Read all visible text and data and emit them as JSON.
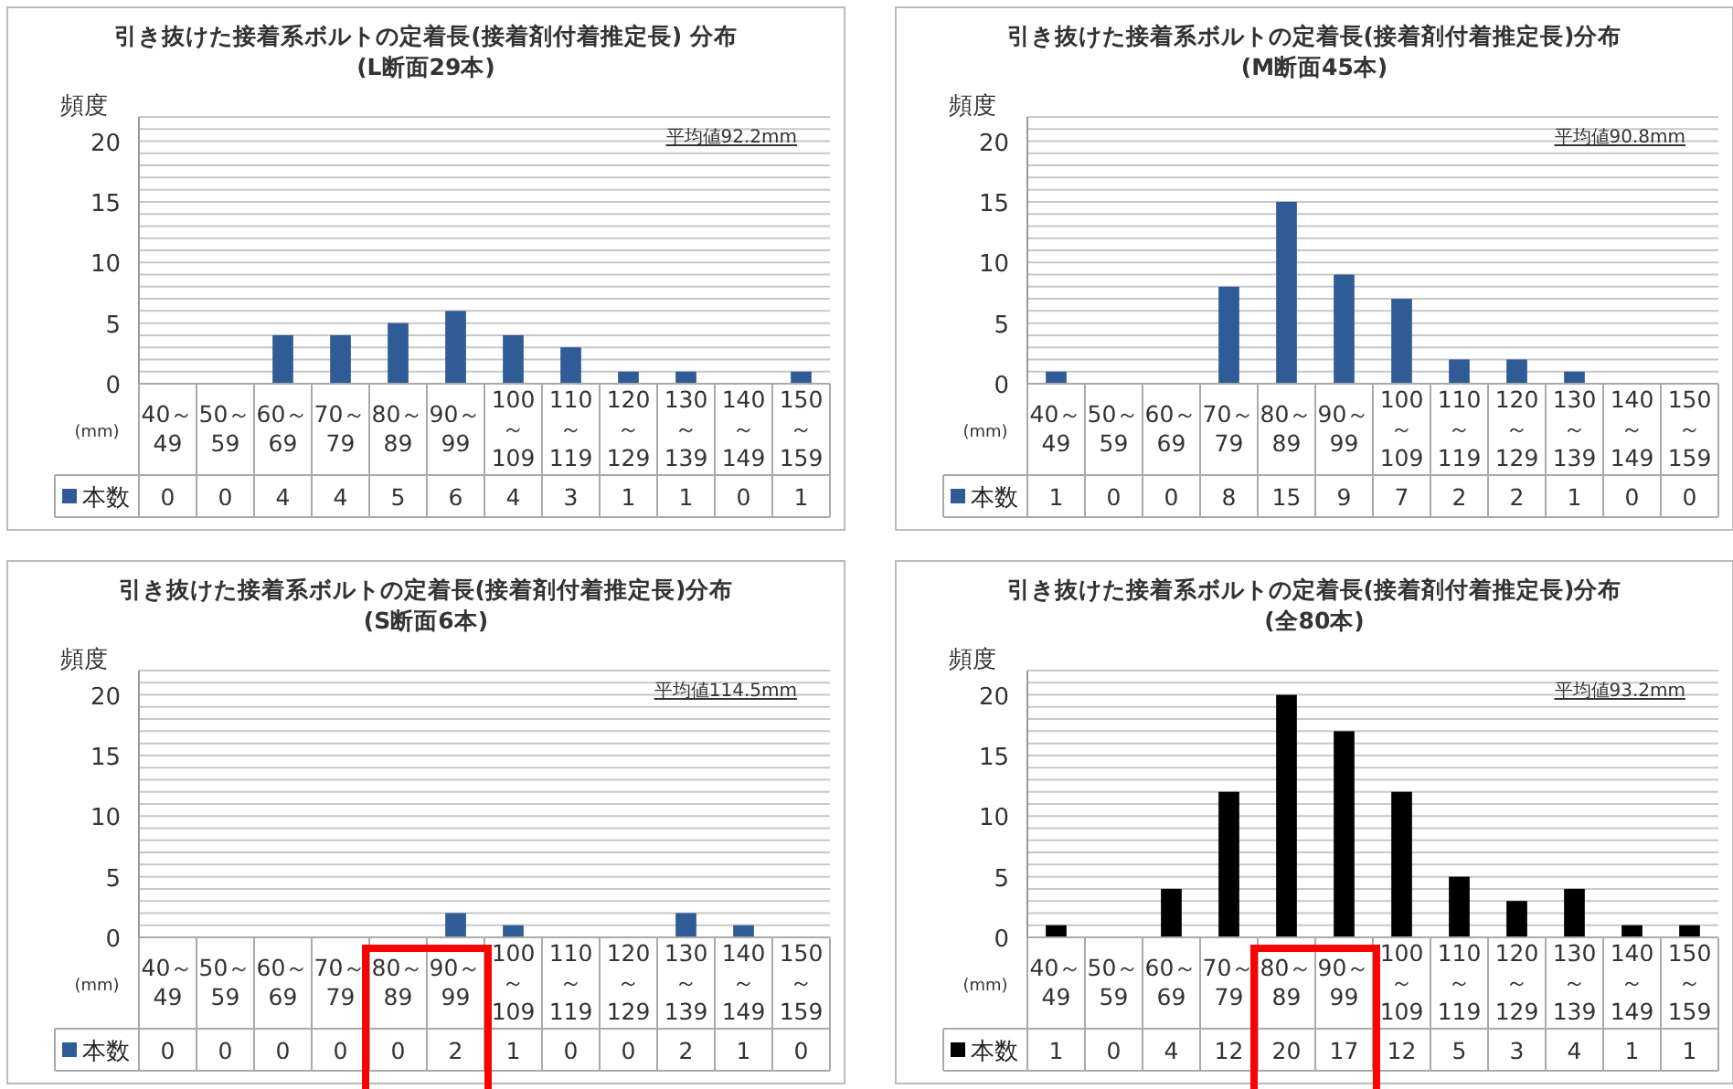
{
  "chart_data": [
    {
      "type": "bar",
      "title": "引き抜けた接着系ボルトの定着長(接着剤付着推定長) 分布",
      "subtitle": "(L断面29本)",
      "ylabel": "頻度",
      "xlabel": "(mm)",
      "categories": [
        "40～49",
        "50～59",
        "60～69",
        "70～79",
        "80～89",
        "90～99",
        "100～109",
        "110～119",
        "120～129",
        "130～139",
        "140～149",
        "150～159"
      ],
      "series": [
        {
          "name": "本数",
          "color": "#2f5b96",
          "values": [
            0,
            0,
            4,
            4,
            5,
            6,
            4,
            3,
            1,
            1,
            0,
            1
          ]
        }
      ],
      "ylim": [
        0,
        22
      ],
      "yticks": [
        0,
        {
          "value": 1,
          "label": null
        },
        {
          "value": 2,
          "label": null
        },
        {
          "value": 3,
          "label": null
        },
        {
          "value": 4,
          "label": null
        },
        5,
        {
          "value": 6,
          "label": null
        },
        {
          "value": 7,
          "label": null
        },
        {
          "value": 8,
          "label": null
        },
        {
          "value": 9,
          "label": null
        },
        10,
        {
          "value": 11,
          "label": null
        },
        {
          "value": 12,
          "label": null
        },
        {
          "value": 13,
          "label": null
        },
        {
          "value": 14,
          "label": null
        },
        15,
        {
          "value": 16,
          "label": null
        },
        {
          "value": 17,
          "label": null
        },
        {
          "value": 18,
          "label": null
        },
        {
          "value": 19,
          "label": null
        },
        20,
        {
          "value": 21,
          "label": null
        },
        {
          "value": 22,
          "label": null
        }
      ],
      "grid": "y",
      "legend": "bottom",
      "data_labels": true,
      "annotations": [
        "平均値92.2mm"
      ]
    },
    {
      "type": "bar",
      "title": "引き抜けた接着系ボルトの定着長(接着剤付着推定長)分布",
      "subtitle": "(M断面45本)",
      "ylabel": "頻度",
      "xlabel": "(mm)",
      "categories": [
        "40～49",
        "50～59",
        "60～69",
        "70～79",
        "80～89",
        "90～99",
        "100～109",
        "110～119",
        "120～129",
        "130～139",
        "140～149",
        "150～159"
      ],
      "series": [
        {
          "name": "本数",
          "color": "#2f5b96",
          "values": [
            1,
            0,
            0,
            8,
            15,
            9,
            7,
            2,
            2,
            1,
            0,
            0
          ]
        }
      ],
      "ylim": [
        0,
        22
      ],
      "yticks": [
        0,
        {
          "value": 1,
          "label": null
        },
        {
          "value": 2,
          "label": null
        },
        {
          "value": 3,
          "label": null
        },
        {
          "value": 4,
          "label": null
        },
        5,
        {
          "value": 6,
          "label": null
        },
        {
          "value": 7,
          "label": null
        },
        {
          "value": 8,
          "label": null
        },
        {
          "value": 9,
          "label": null
        },
        10,
        {
          "value": 11,
          "label": null
        },
        {
          "value": 12,
          "label": null
        },
        {
          "value": 13,
          "label": null
        },
        {
          "value": 14,
          "label": null
        },
        15,
        {
          "value": 16,
          "label": null
        },
        {
          "value": 17,
          "label": null
        },
        {
          "value": 18,
          "label": null
        },
        {
          "value": 19,
          "label": null
        },
        20,
        {
          "value": 21,
          "label": null
        },
        {
          "value": 22,
          "label": null
        }
      ],
      "grid": "y",
      "legend": "bottom",
      "data_labels": true,
      "annotations": [
        "平均値90.8mm"
      ]
    },
    {
      "type": "bar",
      "title": "引き抜けた接着系ボルトの定着長(接着剤付着推定長)分布",
      "subtitle": "(S断面6本)",
      "ylabel": "頻度",
      "xlabel": "(mm)",
      "categories": [
        "40～49",
        "50～59",
        "60～69",
        "70～79",
        "80～89",
        "90～99",
        "100～109",
        "110～119",
        "120～129",
        "130～139",
        "140～149",
        "150～159"
      ],
      "series": [
        {
          "name": "本数",
          "color": "#2f5b96",
          "values": [
            0,
            0,
            0,
            0,
            0,
            2,
            1,
            0,
            0,
            2,
            1,
            0
          ]
        }
      ],
      "ylim": [
        0,
        22
      ],
      "yticks": [
        0,
        {
          "value": 1,
          "label": null
        },
        {
          "value": 2,
          "label": null
        },
        {
          "value": 3,
          "label": null
        },
        {
          "value": 4,
          "label": null
        },
        5,
        {
          "value": 6,
          "label": null
        },
        {
          "value": 7,
          "label": null
        },
        {
          "value": 8,
          "label": null
        },
        {
          "value": 9,
          "label": null
        },
        10,
        {
          "value": 11,
          "label": null
        },
        {
          "value": 12,
          "label": null
        },
        {
          "value": 13,
          "label": null
        },
        {
          "value": 14,
          "label": null
        },
        15,
        {
          "value": 16,
          "label": null
        },
        {
          "value": 17,
          "label": null
        },
        {
          "value": 18,
          "label": null
        },
        {
          "value": 19,
          "label": null
        },
        20,
        {
          "value": 21,
          "label": null
        },
        {
          "value": 22,
          "label": null
        }
      ],
      "grid": "y",
      "legend": "bottom",
      "data_labels": true,
      "annotations": [
        "平均値114.5mm"
      ]
    },
    {
      "type": "bar",
      "title": "引き抜けた接着系ボルトの定着長(接着剤付着推定長)分布",
      "subtitle": "(全80本)",
      "ylabel": "頻度",
      "xlabel": "(mm)",
      "categories": [
        "40～49",
        "50～59",
        "60～69",
        "70～79",
        "80～89",
        "90～99",
        "100～109",
        "110～119",
        "120～129",
        "130～139",
        "140～149",
        "150～159"
      ],
      "series": [
        {
          "name": "本数",
          "color": "#000000",
          "values": [
            1,
            0,
            4,
            12,
            20,
            17,
            12,
            5,
            3,
            4,
            1,
            1
          ]
        }
      ],
      "ylim": [
        0,
        22
      ],
      "yticks": [
        0,
        {
          "value": 1,
          "label": null
        },
        {
          "value": 2,
          "label": null
        },
        {
          "value": 3,
          "label": null
        },
        {
          "value": 4,
          "label": null
        },
        5,
        {
          "value": 6,
          "label": null
        },
        {
          "value": 7,
          "label": null
        },
        {
          "value": 8,
          "label": null
        },
        {
          "value": 9,
          "label": null
        },
        10,
        {
          "value": 11,
          "label": null
        },
        {
          "value": 12,
          "label": null
        },
        {
          "value": 13,
          "label": null
        },
        {
          "value": 14,
          "label": null
        },
        15,
        {
          "value": 16,
          "label": null
        },
        {
          "value": 17,
          "label": null
        },
        {
          "value": 18,
          "label": null
        },
        {
          "value": 19,
          "label": null
        },
        20,
        {
          "value": 21,
          "label": null
        },
        {
          "value": 22,
          "label": null
        }
      ],
      "grid": "y",
      "legend": "bottom",
      "data_labels": true,
      "annotations": [
        "平均値93.2mm"
      ]
    }
  ]
}
